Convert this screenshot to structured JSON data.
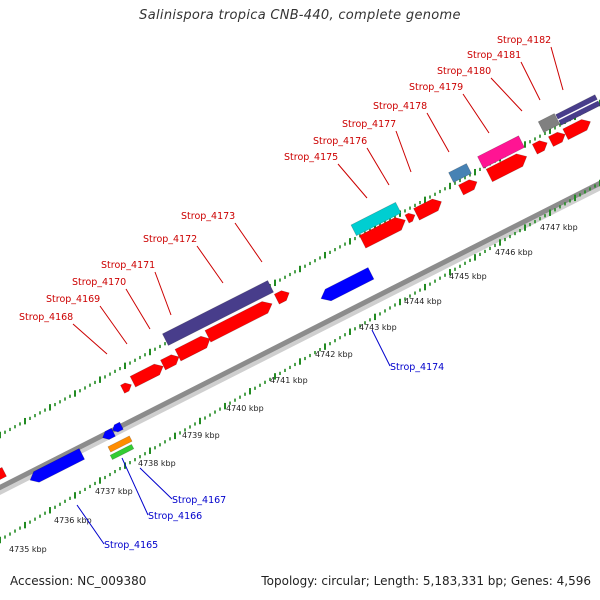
{
  "title": "Salinispora tropica CNB-440, complete genome",
  "accession_text": "Accession: NC_009380",
  "summary_text": "Topology: circular; Length: 5,183,331 bp; Genes: 4,596",
  "colors": {
    "forward_label": "#cc0000",
    "reverse_label": "#0000cc",
    "forward_gene": "#ff0000",
    "reverse_gene": "#0000ff",
    "backbone": "#999999",
    "tick": "#228b22"
  },
  "scale_labels": [
    "4735 kbp",
    "4736 kbp",
    "4737 kbp",
    "4738 kbp",
    "4739 kbp",
    "4740 kbp",
    "4741 kbp",
    "4742 kbp",
    "4743 kbp",
    "4744 kbp",
    "4745 kbp",
    "4746 kbp",
    "4747 kbp"
  ],
  "forward_labels": [
    "Strop_4168",
    "Strop_4169",
    "Strop_4170",
    "Strop_4171",
    "Strop_4172",
    "Strop_4173",
    "Strop_4175",
    "Strop_4176",
    "Strop_4177",
    "Strop_4178",
    "Strop_4179",
    "Strop_4180",
    "Strop_4181",
    "Strop_4182"
  ],
  "reverse_labels": [
    "Strop_4165",
    "Strop_4166",
    "Strop_4167",
    "Strop_4174"
  ],
  "features": [
    {
      "name": "Strop_4165",
      "strand": "-",
      "color": "#0000ff"
    },
    {
      "name": "Strop_4166",
      "strand": "-",
      "color": "#33cc33"
    },
    {
      "name": "Strop_4167",
      "strand": "-",
      "color": "#ff8c00"
    },
    {
      "name": "Strop_4168",
      "strand": "+",
      "color": "#ff0000"
    },
    {
      "name": "Strop_4169",
      "strand": "+",
      "color": "#ff0000"
    },
    {
      "name": "Strop_4170",
      "strand": "+",
      "color": "#ff0000"
    },
    {
      "name": "Strop_4171",
      "strand": "+",
      "color": "#ff0000"
    },
    {
      "name": "Strop_4172",
      "strand": "+",
      "color": "#483d8b"
    },
    {
      "name": "Strop_4173",
      "strand": "+",
      "color": "#ff0000"
    },
    {
      "name": "Strop_4174",
      "strand": "-",
      "color": "#0000ff"
    },
    {
      "name": "Strop_4175",
      "strand": "+",
      "color": "#ff0000"
    },
    {
      "name": "Strop_4176",
      "strand": "+",
      "color": "#00ced1"
    },
    {
      "name": "Strop_4177",
      "strand": "+",
      "color": "#ff0000"
    },
    {
      "name": "Strop_4178",
      "strand": "+",
      "color": "#4682b4"
    },
    {
      "name": "Strop_4179",
      "strand": "+",
      "color": "#ff0000"
    },
    {
      "name": "Strop_4180",
      "strand": "+",
      "color": "#ff1493"
    },
    {
      "name": "Strop_4181",
      "strand": "+",
      "color": "#ff0000"
    },
    {
      "name": "Strop_4182",
      "strand": "+",
      "color": "#808080"
    }
  ]
}
